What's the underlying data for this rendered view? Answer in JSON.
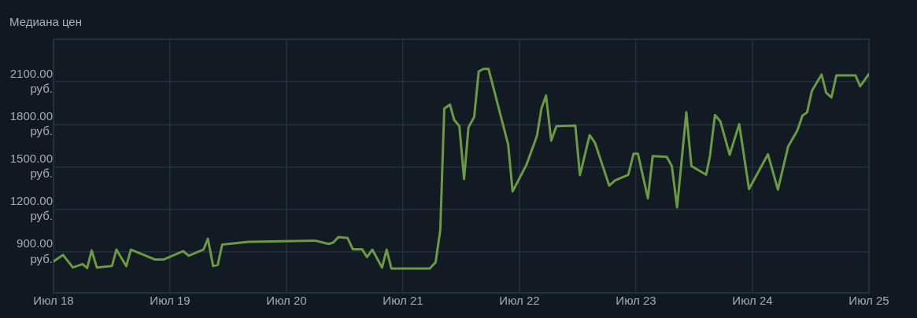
{
  "chart_data": {
    "type": "line",
    "title": "Медиана цен",
    "x": [
      "--07-18T00:00",
      "--07-18T01:57",
      "--07-18T03:59",
      "--07-18T05:59",
      "--07-18T06:56",
      "--07-18T07:51",
      "--07-18T08:56",
      "--07-18T12:03",
      "--07-18T12:58",
      "--07-18T15:00",
      "--07-18T15:56",
      "--07-18T20:56",
      "--07-18T22:39",
      "--07-19T02:41",
      "--07-19T03:52",
      "--07-19T06:53",
      "--07-19T07:48",
      "--07-19T08:53",
      "--07-19T09:50",
      "--07-19T10:45",
      "--07-19T16:08",
      "--07-20T05:51",
      "--07-20T08:43",
      "--07-20T09:37",
      "--07-20T10:42",
      "--07-20T12:34",
      "--07-20T13:39",
      "--07-20T15:33",
      "--07-20T16:36",
      "--07-20T17:41",
      "--07-20T19:41",
      "--07-20T20:38",
      "--07-20T21:36",
      "--07-21T05:31",
      "--07-21T06:43",
      "--07-21T07:41",
      "--07-21T08:30",
      "--07-21T09:40",
      "--07-21T10:32",
      "--07-21T11:37",
      "--07-21T12:35",
      "--07-21T13:29",
      "--07-21T14:40",
      "--07-21T15:36",
      "--07-21T16:34",
      "--07-21T17:37",
      "--07-21T21:40",
      "--07-21T22:35",
      "--07-22T01:26",
      "--07-22T03:36",
      "--07-22T04:31",
      "--07-22T05:28",
      "--07-22T06:32",
      "--07-22T07:36",
      "--07-22T11:30",
      "--07-22T12:27",
      "--07-22T14:27",
      "--07-22T15:32",
      "--07-22T18:29",
      "--07-22T19:44",
      "--07-22T22:25",
      "--07-22T23:30",
      "--07-23T00:24",
      "--07-23T02:27",
      "--07-23T03:26",
      "--07-23T06:20",
      "--07-23T07:23",
      "--07-23T08:28",
      "--07-23T10:22",
      "--07-23T11:25",
      "--07-23T14:27",
      "--07-23T15:14",
      "--07-23T16:16",
      "--07-23T17:24",
      "--07-23T19:18",
      "--07-23T21:16",
      "--07-23T23:17",
      "--07-24T03:11",
      "--07-24T05:14",
      "--07-24T07:21",
      "--07-24T09:13",
      "--07-24T10:18",
      "--07-24T11:15",
      "--07-24T12:14",
      "--07-24T14:14",
      "--07-24T15:11",
      "--07-24T16:16",
      "--07-24T17:17",
      "--07-24T21:13",
      "--07-24T22:11",
      "--07-25T00:00"
    ],
    "series": [
      {
        "color": "#6b9a43",
        "values": [
          832,
          878,
          789,
          813,
          785,
          909,
          789,
          800,
          915,
          799,
          915,
          845,
          845,
          905,
          872,
          915,
          992,
          799,
          808,
          951,
          970,
          979,
          955,
          965,
          1004,
          998,
          918,
          918,
          863,
          915,
          789,
          915,
          782,
          782,
          826,
          1053,
          1911,
          1939,
          1832,
          1786,
          1413,
          1778,
          1852,
          2173,
          2191,
          2191,
          1657,
          1326,
          1514,
          1718,
          1911,
          2003,
          1684,
          1786,
          1791,
          1441,
          1723,
          1671,
          1367,
          1404,
          1444,
          1592,
          1592,
          1278,
          1575,
          1570,
          1505,
          1214,
          1884,
          1505,
          1444,
          1574,
          1865,
          1819,
          1585,
          1801,
          1343,
          1588,
          1339,
          1643,
          1754,
          1861,
          1884,
          2035,
          2151,
          2022,
          1989,
          2145,
          2145,
          2068,
          2155
        ]
      }
    ],
    "xlim": [
      "--07-18",
      "--07-25"
    ],
    "xticks": [
      {
        "value": "--07-18",
        "label": "Июл 18"
      },
      {
        "value": "--07-19",
        "label": "Июл 19"
      },
      {
        "value": "--07-20",
        "label": "Июл 20"
      },
      {
        "value": "--07-21",
        "label": "Июл 21"
      },
      {
        "value": "--07-22",
        "label": "Июл 22"
      },
      {
        "value": "--07-23",
        "label": "Июл 23"
      },
      {
        "value": "--07-24",
        "label": "Июл 24"
      },
      {
        "value": "--07-25",
        "label": "Июл 25"
      }
    ],
    "ylim": [
      610,
      2400
    ],
    "yticks": [
      {
        "value": 900,
        "label": "900.00 руб."
      },
      {
        "value": 1200,
        "label": "1200.00 руб."
      },
      {
        "value": 1500,
        "label": "1500.00 руб."
      },
      {
        "value": 1800,
        "label": "1800.00 руб."
      },
      {
        "value": 2100,
        "label": "2100.00 руб."
      }
    ],
    "grid": true,
    "legend": false,
    "marker": "none",
    "line_style": "solid"
  }
}
